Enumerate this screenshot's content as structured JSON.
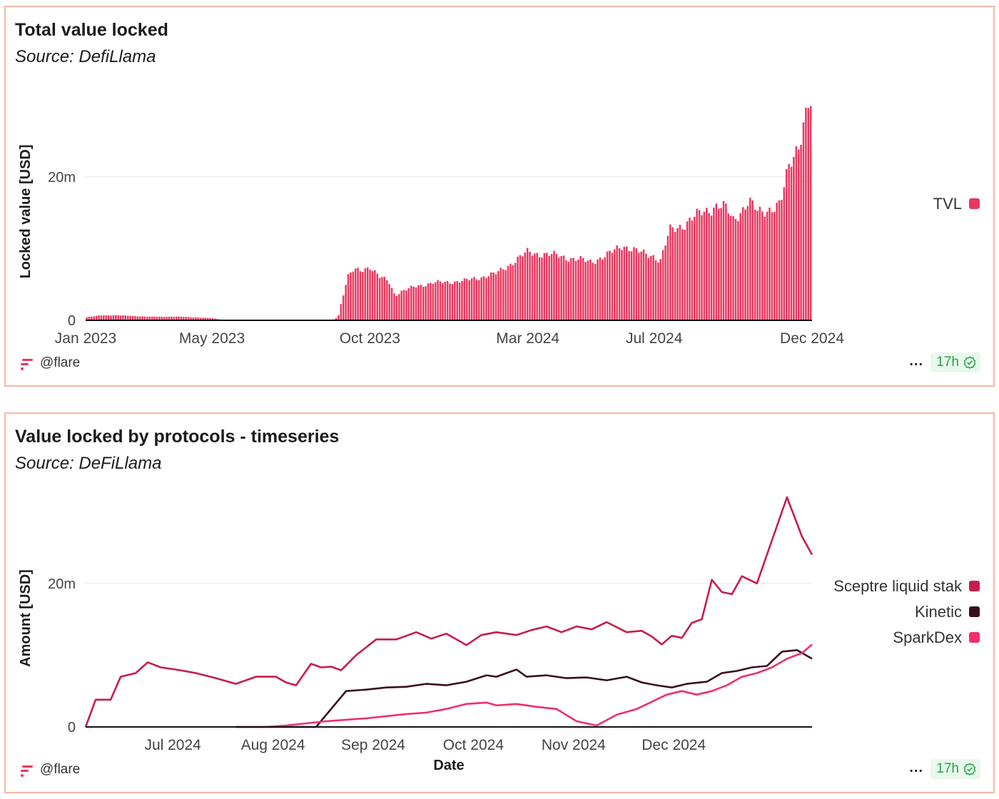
{
  "colors": {
    "tvl": "#e8375f",
    "sceptre": "#c71d4c",
    "kinetic": "#3b0f1a",
    "sparkdex": "#f0306a",
    "grid": "#e6e6e6",
    "axis": "#111111",
    "tick_text": "#444444",
    "badge_green": "#22a447"
  },
  "panel1": {
    "title": "Total value locked",
    "subtitle": "Source: DefiLlama",
    "footer": {
      "user": "@flare",
      "more": "...",
      "age": "17h",
      "logo_icon": "flare-logo-icon",
      "check_icon": "check-badge-icon"
    }
  },
  "panel2": {
    "title": "Value locked by protocols - timeseries",
    "subtitle": "Source: DeFiLlama",
    "footer": {
      "user": "@flare",
      "more": "...",
      "age": "17h",
      "logo_icon": "flare-logo-icon",
      "check_icon": "check-badge-icon"
    }
  },
  "chart_data": [
    {
      "type": "bar",
      "title": "Total value locked",
      "xlabel": "",
      "ylabel": "Locked value [USD]",
      "ylim": [
        0,
        32700000
      ],
      "yticks": [
        0,
        20000000
      ],
      "ytick_labels": [
        "0",
        "20m"
      ],
      "xrange_months": [
        0,
        23
      ],
      "xticks": [
        0,
        4,
        9,
        14,
        18,
        23
      ],
      "xtick_labels": [
        "Jan 2023",
        "May 2023",
        "Oct 2023",
        "Mar 2024",
        "Jul 2024",
        "Dec 2024"
      ],
      "legend": [
        {
          "name": "TVL"
        }
      ],
      "legend_position": "right",
      "series": [
        {
          "name": "TVL",
          "x_months": [
            0.0,
            0.5,
            1.0,
            2.0,
            3.0,
            4.0,
            4.3,
            5.0,
            6.0,
            7.0,
            7.8,
            8.0,
            8.1,
            8.3,
            8.5,
            8.7,
            9.0,
            9.3,
            9.6,
            9.8,
            10.0,
            10.5,
            11.0,
            12.0,
            13.0,
            13.5,
            14.0,
            14.5,
            15.0,
            15.5,
            16.0,
            16.5,
            17.0,
            17.5,
            18.0,
            18.2,
            18.5,
            19.0,
            19.5,
            20.0,
            20.3,
            20.5,
            21.0,
            21.3,
            21.6,
            22.0,
            22.3,
            22.6,
            22.9,
            23.0
          ],
          "values": [
            400000,
            700000,
            700000,
            500000,
            500000,
            300000,
            100000,
            0,
            0,
            0,
            0,
            500000,
            2500000,
            6000000,
            7000000,
            7000000,
            7500000,
            6000000,
            5500000,
            3500000,
            4000000,
            4800000,
            5200000,
            5500000,
            6500000,
            8000000,
            9500000,
            9200000,
            9000000,
            8500000,
            8200000,
            9000000,
            10500000,
            9500000,
            9000000,
            8200000,
            12500000,
            13500000,
            15000000,
            16000000,
            15500000,
            14000000,
            16500000,
            15000000,
            15500000,
            16000000,
            22000000,
            25000000,
            30000000,
            29500000
          ]
        }
      ]
    },
    {
      "type": "line",
      "title": "Value locked by protocols - timeseries",
      "xlabel": "Date",
      "ylabel": "Amount [USD]",
      "ylim": [
        0,
        32700000
      ],
      "yticks": [
        0,
        20000000
      ],
      "ytick_labels": [
        "0",
        "20m"
      ],
      "xrange_months": [
        0,
        7.25
      ],
      "xticks": [
        0.87,
        1.87,
        2.87,
        3.87,
        4.87,
        5.87
      ],
      "xtick_labels": [
        "Jul 2024",
        "Aug 2024",
        "Sep 2024",
        "Oct 2024",
        "Nov 2024",
        "Dec 2024"
      ],
      "legend": [
        {
          "name": "Sceptre liquid stak"
        },
        {
          "name": "Kinetic"
        },
        {
          "name": "SparkDex"
        }
      ],
      "legend_position": "right",
      "series": [
        {
          "name": "Sceptre liquid staking",
          "x_months": [
            0,
            0.1,
            0.25,
            0.35,
            0.5,
            0.62,
            0.75,
            0.9,
            1.1,
            1.3,
            1.5,
            1.7,
            1.9,
            2.0,
            2.1,
            2.25,
            2.35,
            2.45,
            2.55,
            2.7,
            2.9,
            3.1,
            3.3,
            3.45,
            3.6,
            3.8,
            3.95,
            4.1,
            4.3,
            4.45,
            4.6,
            4.75,
            4.9,
            5.05,
            5.2,
            5.4,
            5.55,
            5.65,
            5.75,
            5.85,
            5.95,
            6.05,
            6.15,
            6.25,
            6.35,
            6.45,
            6.55,
            6.7,
            6.85,
            7.0,
            7.15,
            7.25
          ],
          "values": [
            0,
            3800000,
            3800000,
            7000000,
            7500000,
            9000000,
            8300000,
            8000000,
            7500000,
            6800000,
            6000000,
            7000000,
            7000000,
            6200000,
            5800000,
            8800000,
            8300000,
            8400000,
            7900000,
            10000000,
            12200000,
            12200000,
            13200000,
            12300000,
            13000000,
            11400000,
            12800000,
            13200000,
            12800000,
            13500000,
            14000000,
            13200000,
            14000000,
            13600000,
            14600000,
            13200000,
            13400000,
            12600000,
            11500000,
            12700000,
            12400000,
            14500000,
            15000000,
            20500000,
            18800000,
            18500000,
            21000000,
            20000000,
            26000000,
            32000000,
            26500000,
            24000000
          ]
        },
        {
          "name": "Kinetic",
          "x_months": [
            1.5,
            1.8,
            2.1,
            2.3,
            2.45,
            2.6,
            2.8,
            3.0,
            3.2,
            3.4,
            3.6,
            3.8,
            4.0,
            4.1,
            4.3,
            4.4,
            4.6,
            4.8,
            5.0,
            5.2,
            5.4,
            5.55,
            5.7,
            5.85,
            6.0,
            6.2,
            6.35,
            6.5,
            6.65,
            6.8,
            6.95,
            7.1,
            7.25
          ],
          "values": [
            0,
            0,
            0,
            0,
            2500000,
            5000000,
            5200000,
            5500000,
            5600000,
            6000000,
            5800000,
            6300000,
            7200000,
            7000000,
            8000000,
            7000000,
            7200000,
            6800000,
            6900000,
            6500000,
            7000000,
            6200000,
            5800000,
            5500000,
            6000000,
            6300000,
            7500000,
            7800000,
            8300000,
            8500000,
            10500000,
            10700000,
            9500000
          ]
        },
        {
          "name": "SparkDex",
          "x_months": [
            1.5,
            1.8,
            2.0,
            2.2,
            2.4,
            2.6,
            2.8,
            3.0,
            3.2,
            3.4,
            3.6,
            3.8,
            4.0,
            4.1,
            4.3,
            4.5,
            4.7,
            4.9,
            5.1,
            5.3,
            5.5,
            5.65,
            5.8,
            5.95,
            6.1,
            6.25,
            6.4,
            6.55,
            6.7,
            6.85,
            7.0,
            7.15,
            7.25
          ],
          "values": [
            0,
            0,
            200000,
            500000,
            800000,
            1000000,
            1200000,
            1500000,
            1800000,
            2000000,
            2500000,
            3200000,
            3400000,
            3000000,
            3200000,
            2800000,
            2500000,
            800000,
            200000,
            1700000,
            2500000,
            3500000,
            4500000,
            5000000,
            4500000,
            5000000,
            5800000,
            7000000,
            7500000,
            8300000,
            9500000,
            10300000,
            11500000
          ]
        }
      ]
    }
  ]
}
